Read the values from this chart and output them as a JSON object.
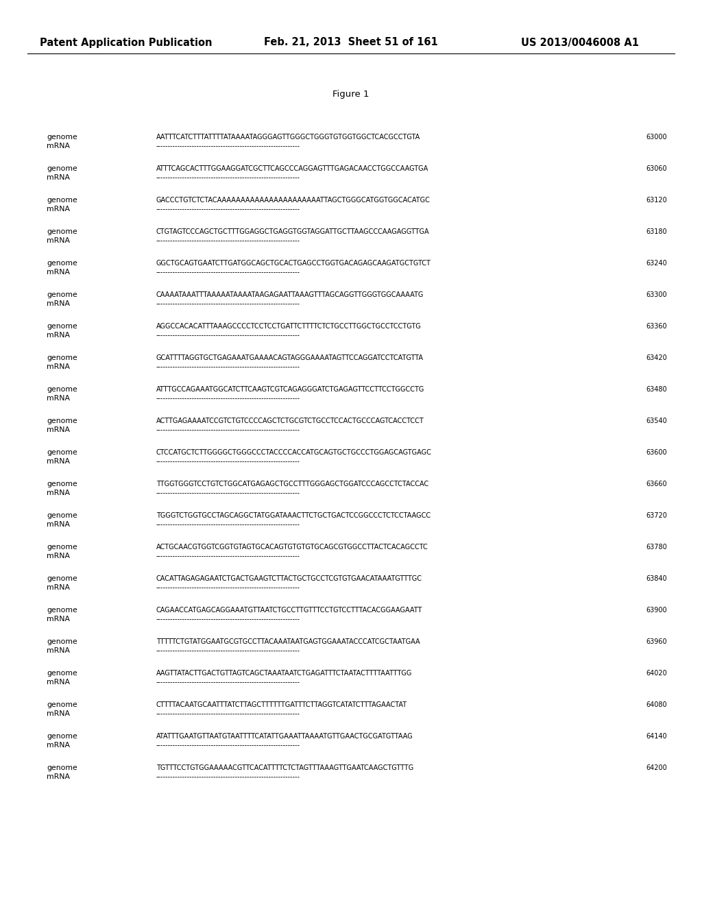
{
  "header_left": "Patent Application Publication",
  "header_mid": "Feb. 21, 2013  Sheet 51 of 161",
  "header_right": "US 2013/0046008 A1",
  "figure_title": "Figure 1",
  "rows": [
    {
      "genome": "AATTTCATCTTTATTTTATAAAATAGGGAGTTGGGCTGGGTGTGGTGGCTCACGCCTGTA",
      "number": "63000"
    },
    {
      "genome": "ATTTCAGCACTTTGGAAGGATCGCTTCAGCCCAGGAGTTTGAGACAACCTGGCCAAGTGA",
      "number": "63060"
    },
    {
      "genome": "GACCCTGTCTCTACAAAAAAAAAAAAAAAAAAAAAATTAGCTGGGCATGGTGGCACATGC",
      "number": "63120"
    },
    {
      "genome": "CTGTAGTCCCAGCTGCTTTGGAGGCTGAGGTGGTAGGATTGCTTAAGCCCAAGAGGTTGA",
      "number": "63180"
    },
    {
      "genome": "GGCTGCAGTGAATCTTGATGGCAGCTGCACTGAGCCTGGTGACAGAGCAAGATGCTGTCT",
      "number": "63240"
    },
    {
      "genome": "CAAAATAAATTTAAAAATAAAATAAGAGAATTAAAGTTTAGCAGGTTGGGTGGCAAAATG",
      "number": "63300"
    },
    {
      "genome": "AGGCCACACATTTAAAGCCCCTCCTCCTGATTCTTTTCTCTGCCTTGGCTGCCTCCTGTG",
      "number": "63360"
    },
    {
      "genome": "GCATTTTAGGTGCTGAGAAATGAAAACAGTAGGGAAAATAGTTCCAGGATCCTCATGTTA",
      "number": "63420"
    },
    {
      "genome": "ATTTGCCAGAAATGGCATCTTCAAGTCGTCAGAGGGATCTGAGAGTTCCTTCCTGGCCTG",
      "number": "63480"
    },
    {
      "genome": "ACTTGAGAAAATCCGTCTGTCCCCAGCTCTGCGTCTGCCTCCACTGCCCAGTCACCTCCT",
      "number": "63540"
    },
    {
      "genome": "CTCCATGCTCTTGGGGCTGGGCCCTACCCCACCATGCAGTGCTGCCCTGGAGCAGTGAGC",
      "number": "63600"
    },
    {
      "genome": "TTGGTGGGTCCTGTCTGGCATGAGAGCTGCCTTTGGGAGCTGGATCCCAGCCTCTACCAC",
      "number": "63660"
    },
    {
      "genome": "TGGGTCTGGTGCCTAGCAGGCTATGGATAAACTTCTGCTGACTCCGGCCCTCTCCTAAGCC",
      "number": "63720"
    },
    {
      "genome": "ACTGCAACGTGGTCGGTGTAGTGCACAGTGTGTGTGCAGCGTGGCCTTACTCACAGCCTC",
      "number": "63780"
    },
    {
      "genome": "CACATTAGAGAGAATCTGACTGAAGTCTTACTGCTGCCTCGTGTGAACATAAATGTTTGC",
      "number": "63840"
    },
    {
      "genome": "CAGAACCATGAGCAGGAAATGTTAATCTGCCTTGTTTCCTGTCCTTTACACGGAAGAATT",
      "number": "63900"
    },
    {
      "genome": "TTTTTCTGTATGGAATGCGTGCCTTACAAATAATGAGTGGAAATACCCATCGCTAATGAA",
      "number": "63960"
    },
    {
      "genome": "AAGTTATACTTGACTGTTAGTCAGCTAAATAATCTGAGATTTCTAATACTTTTAATTTGG",
      "number": "64020"
    },
    {
      "genome": "CTTTTACAATGCAATTTATCTTAGCTTTTTTGATTTCTTAGGTCATATCTTTAGAACTAT",
      "number": "64080"
    },
    {
      "genome": "ATATTTGAATGTTAATGTAATTTTCATATTGAAATTAAAATGTTGAACTGCGATGTTAAG",
      "number": "64140"
    },
    {
      "genome": "TGTTTCCTGTGGAAAAACGTTCACATTTTCTCTAGTTTAAAGTTGAATCAAGCTGTTTG",
      "number": "64200"
    }
  ],
  "mrna_dashes": "------------------------------------------------------------",
  "bg_color": "#ffffff",
  "text_color": "#000000",
  "header_fontsize": 10.5,
  "figure_fontsize": 9.5,
  "label_fontsize": 7.8,
  "seq_fontsize": 7.0,
  "num_fontsize": 7.0
}
